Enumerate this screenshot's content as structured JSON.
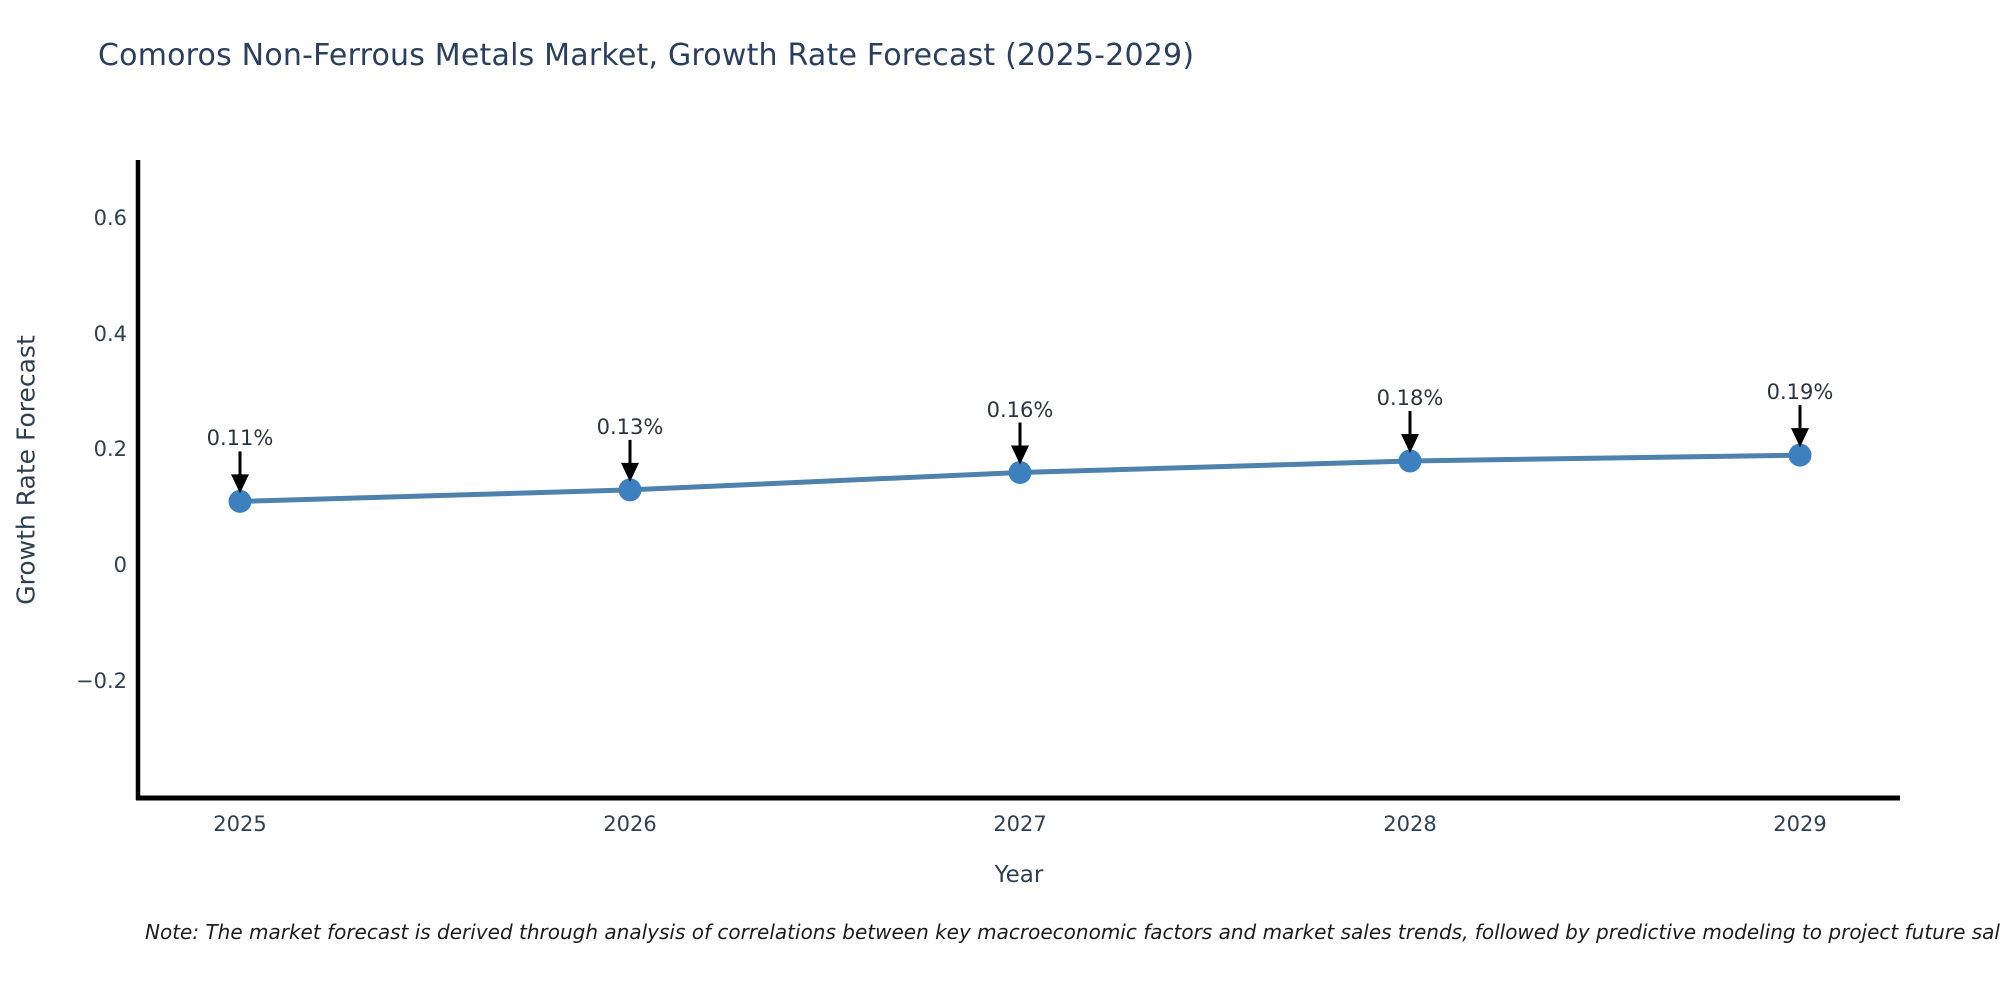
{
  "chart_data": {
    "type": "line",
    "title": "Comoros Non-Ferrous Metals Market, Growth Rate Forecast (2025-2029)",
    "xlabel": "Year",
    "ylabel": "Growth Rate Forecast",
    "x": [
      "2025",
      "2026",
      "2027",
      "2028",
      "2029"
    ],
    "series": [
      {
        "name": "Growth Rate Forecast",
        "values": [
          0.11,
          0.13,
          0.16,
          0.18,
          0.19
        ]
      }
    ],
    "point_labels": [
      "0.11%",
      "0.13%",
      "0.16%",
      "0.18%",
      "0.19%"
    ],
    "y_ticks": {
      "values": [
        0.6,
        0.4,
        0.2,
        0,
        -0.2
      ],
      "labels": [
        "0.6",
        "0.4",
        "0.2",
        "0",
        "−0.2"
      ]
    },
    "ylim": [
      -0.4,
      0.7
    ],
    "grid": false,
    "legend": "none",
    "annotation_style": "down-arrow-to-point",
    "colors": {
      "line": "#4f81ad",
      "marker": "#3d80c0",
      "axis": "#000000",
      "title_text": "#2a3f5f",
      "tick_text": "#2f3f52",
      "annotation_text": "#2b3440",
      "arrow": "#000000",
      "note_text": "#1c1c1c",
      "background": "#ffffff"
    }
  },
  "note": {
    "text": "Note: The market forecast is derived through analysis of correlations between key macroeconomic factors and market sales trends, followed by predictive modeling to project future sales"
  }
}
